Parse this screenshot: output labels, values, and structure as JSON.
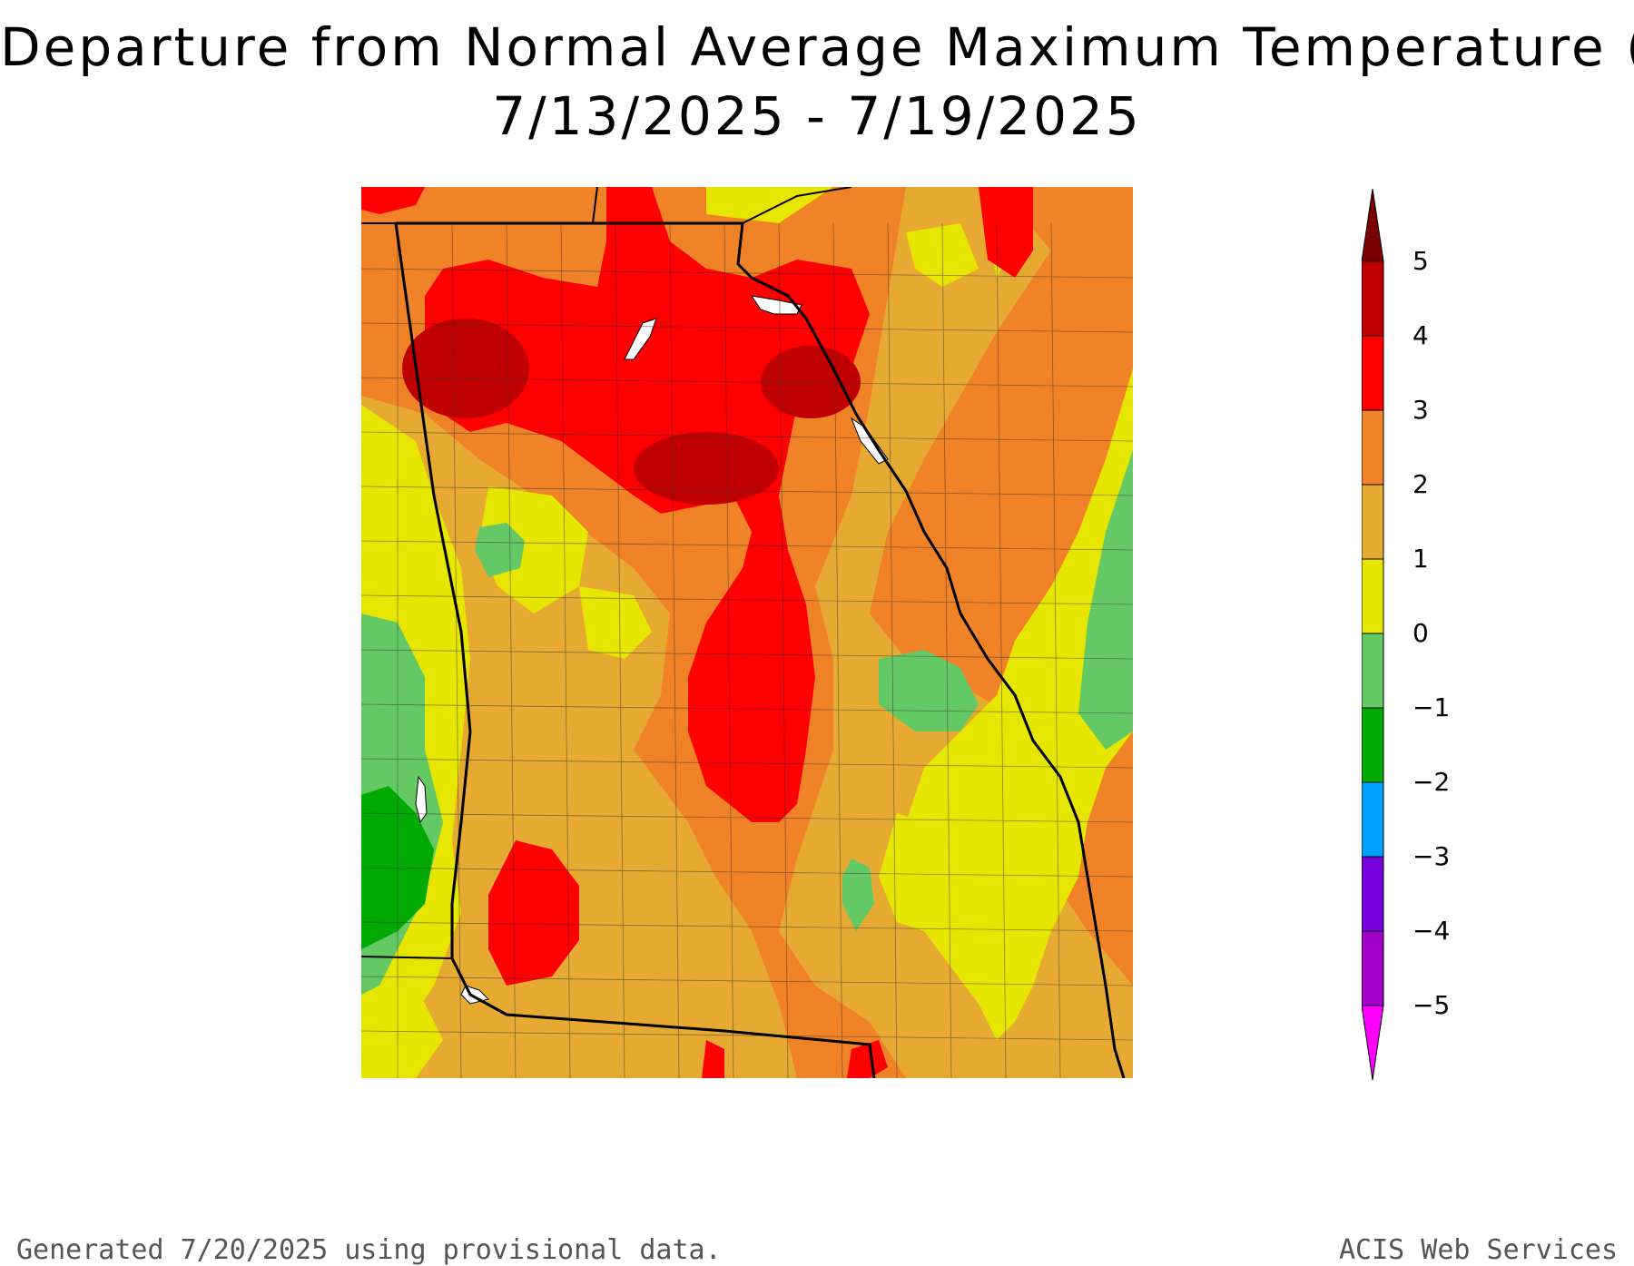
{
  "title": {
    "line1": "Departure from Normal Average Maximum Temperature (F)",
    "line2": "7/13/2025 - 7/19/2025"
  },
  "legend": {
    "labels": [
      "5",
      "4",
      "3",
      "2",
      "1",
      "0",
      "−1",
      "−2",
      "−3",
      "−4",
      "−5"
    ],
    "colors": {
      "above_5": "#7a0000",
      "4_to_5": "#c00000",
      "3_to_4": "#ff0000",
      "2_to_3": "#f08228",
      "1_to_2": "#e6aa32",
      "0_to_1": "#e6e600",
      "neg1_to_0": "#64c864",
      "neg2_to_neg1": "#00aa00",
      "neg3_to_neg2": "#00a0ff",
      "neg4_to_neg3": "#7800dc",
      "neg5_to_neg4": "#a000c8",
      "below_neg5": "#ff00ff"
    }
  },
  "map": {
    "region": "Georgia",
    "water_color": "#ffffff",
    "boundary_color": "#000000"
  },
  "footer": {
    "left": "Generated 7/20/2025  using provisional data.",
    "right": "ACIS Web Services"
  }
}
